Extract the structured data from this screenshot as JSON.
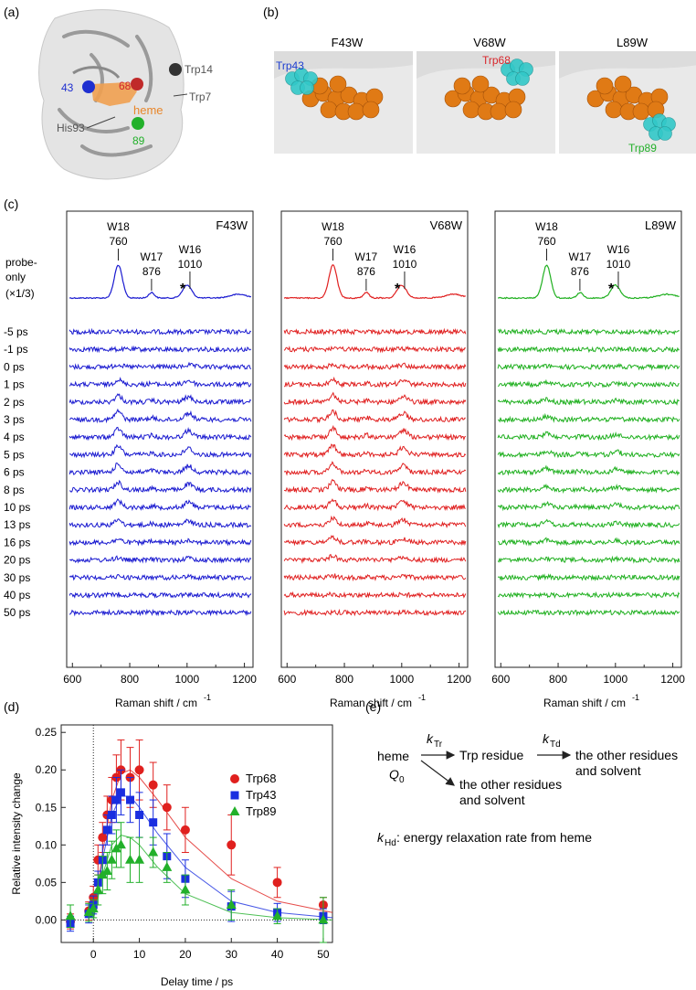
{
  "panel_labels": {
    "a": "(a)",
    "b": "(b)",
    "c": "(c)",
    "d": "(d)",
    "e": "(e)"
  },
  "panel_a": {
    "labels": {
      "r68": "68",
      "trp14": "Trp14",
      "r43": "43",
      "trp7": "Trp7",
      "heme": "heme",
      "his93": "His93",
      "r89": "89"
    },
    "colors": {
      "blue": "#1f2fd0",
      "red": "#d0232a",
      "green": "#22b02a",
      "orange": "#e8862a",
      "gray": "#444444"
    }
  },
  "panel_b": {
    "mutants": [
      {
        "name": "F43W",
        "residue": "Trp43",
        "color": "#1f3fd0"
      },
      {
        "name": "V68W",
        "residue": "Trp68",
        "color": "#d8262b"
      },
      {
        "name": "L89W",
        "residue": "Trp89",
        "color": "#22b02a"
      }
    ]
  },
  "panel_c": {
    "panels": [
      {
        "name": "F43W",
        "color": "#1a1ad0"
      },
      {
        "name": "V68W",
        "color": "#e02020"
      },
      {
        "name": "L89W",
        "color": "#20b020"
      }
    ],
    "peaks": {
      "w18": "W18",
      "w18v": "760",
      "w17": "W17",
      "w17v": "876",
      "w16": "W16",
      "w16v": "1010",
      "star": "*"
    },
    "probe_label_1": "probe-",
    "probe_label_2": "only",
    "probe_label_3": "(×1/3)",
    "delays": [
      "-5 ps",
      "-1 ps",
      "0 ps",
      "1 ps",
      "2 ps",
      "3 ps",
      "4 ps",
      "5 ps",
      "6 ps",
      "8 ps",
      "10 ps",
      "13 ps",
      "16 ps",
      "20 ps",
      "30 ps",
      "40 ps",
      "50 ps"
    ],
    "xticks": [
      "600",
      "800",
      "1000",
      "1200"
    ],
    "xlabel": "Raman shift / cm",
    "xlabel_sup": "-1"
  },
  "chart_data": {
    "type": "scatter",
    "xlabel": "Delay time / ps",
    "ylabel": "Relative intensity change",
    "xlim": [
      -7,
      52
    ],
    "ylim": [
      -0.03,
      0.26
    ],
    "xticks": [
      0,
      10,
      20,
      30,
      40,
      50
    ],
    "yticks": [
      0.0,
      0.05,
      0.1,
      0.15,
      0.2,
      0.25
    ],
    "ytick_labels": [
      "0.00",
      "0.05",
      "0.10",
      "0.15",
      "0.20",
      "0.25"
    ],
    "xtick_labels": [
      "0",
      "10",
      "20",
      "30",
      "40",
      "50"
    ],
    "legend_position": "top-right",
    "series": [
      {
        "name": "Trp68",
        "color": "#e0201e",
        "marker": "circle",
        "x": [
          -5,
          -1,
          0,
          1,
          2,
          3,
          4,
          5,
          6,
          8,
          10,
          13,
          16,
          20,
          30,
          40,
          50
        ],
        "y": [
          -0.002,
          0.012,
          0.03,
          0.08,
          0.11,
          0.14,
          0.16,
          0.19,
          0.2,
          0.19,
          0.2,
          0.18,
          0.15,
          0.12,
          0.1,
          0.05,
          0.02
        ],
        "err": [
          0.01,
          0.012,
          0.015,
          0.02,
          0.02,
          0.025,
          0.03,
          0.03,
          0.04,
          0.04,
          0.04,
          0.03,
          0.03,
          0.03,
          0.04,
          0.02,
          0.01
        ],
        "fit": [
          [
            0,
            0.0
          ],
          [
            2,
            0.09
          ],
          [
            4,
            0.16
          ],
          [
            6,
            0.195
          ],
          [
            8,
            0.2
          ],
          [
            10,
            0.19
          ],
          [
            14,
            0.16
          ],
          [
            20,
            0.11
          ],
          [
            30,
            0.055
          ],
          [
            40,
            0.025
          ],
          [
            52,
            0.01
          ]
        ]
      },
      {
        "name": "Trp43",
        "color": "#1a2ee0",
        "marker": "square",
        "x": [
          -5,
          -1,
          0,
          1,
          2,
          3,
          4,
          5,
          6,
          8,
          10,
          13,
          16,
          20,
          30,
          40,
          50
        ],
        "y": [
          -0.005,
          0.008,
          0.02,
          0.05,
          0.08,
          0.12,
          0.14,
          0.16,
          0.17,
          0.16,
          0.14,
          0.13,
          0.085,
          0.055,
          0.018,
          0.01,
          0.005
        ],
        "err": [
          0.01,
          0.012,
          0.012,
          0.015,
          0.02,
          0.02,
          0.025,
          0.03,
          0.03,
          0.03,
          0.03,
          0.03,
          0.03,
          0.025,
          0.02,
          0.012,
          0.01
        ],
        "fit": [
          [
            0,
            0.0
          ],
          [
            2,
            0.08
          ],
          [
            4,
            0.14
          ],
          [
            6,
            0.165
          ],
          [
            8,
            0.165
          ],
          [
            10,
            0.15
          ],
          [
            14,
            0.115
          ],
          [
            20,
            0.07
          ],
          [
            30,
            0.025
          ],
          [
            40,
            0.01
          ],
          [
            52,
            0.003
          ]
        ]
      },
      {
        "name": "Trp89",
        "color": "#22b02a",
        "marker": "triangle",
        "x": [
          -5,
          -1,
          0,
          1,
          2,
          3,
          4,
          5,
          6,
          8,
          10,
          13,
          16,
          20,
          30,
          40,
          50
        ],
        "y": [
          0.005,
          0.01,
          0.015,
          0.04,
          0.06,
          0.065,
          0.08,
          0.095,
          0.1,
          0.08,
          0.08,
          0.09,
          0.07,
          0.04,
          0.02,
          0.005,
          0.0
        ],
        "err": [
          0.015,
          0.012,
          0.012,
          0.02,
          0.025,
          0.025,
          0.025,
          0.025,
          0.03,
          0.03,
          0.03,
          0.02,
          0.02,
          0.02,
          0.02,
          0.01,
          0.03
        ],
        "fit": [
          [
            0,
            0.0
          ],
          [
            2,
            0.06
          ],
          [
            4,
            0.1
          ],
          [
            6,
            0.113
          ],
          [
            8,
            0.11
          ],
          [
            10,
            0.1
          ],
          [
            14,
            0.07
          ],
          [
            20,
            0.035
          ],
          [
            30,
            0.01
          ],
          [
            40,
            0.003
          ],
          [
            52,
            0.0
          ]
        ]
      }
    ]
  },
  "panel_e": {
    "heme": "heme",
    "q0": "Q",
    "q0_sub": "0",
    "ktr": "k",
    "ktr_sub": "Tr",
    "ktd": "k",
    "ktd_sub": "Td",
    "trp_residue": "Trp residue",
    "other1_l1": "the other residues",
    "other1_l2": "and solvent",
    "other2_l1": "the other residues",
    "other2_l2": "and solvent",
    "khd": "k",
    "khd_sub": "Hd",
    "khd_desc": ": energy relaxation rate from heme"
  }
}
